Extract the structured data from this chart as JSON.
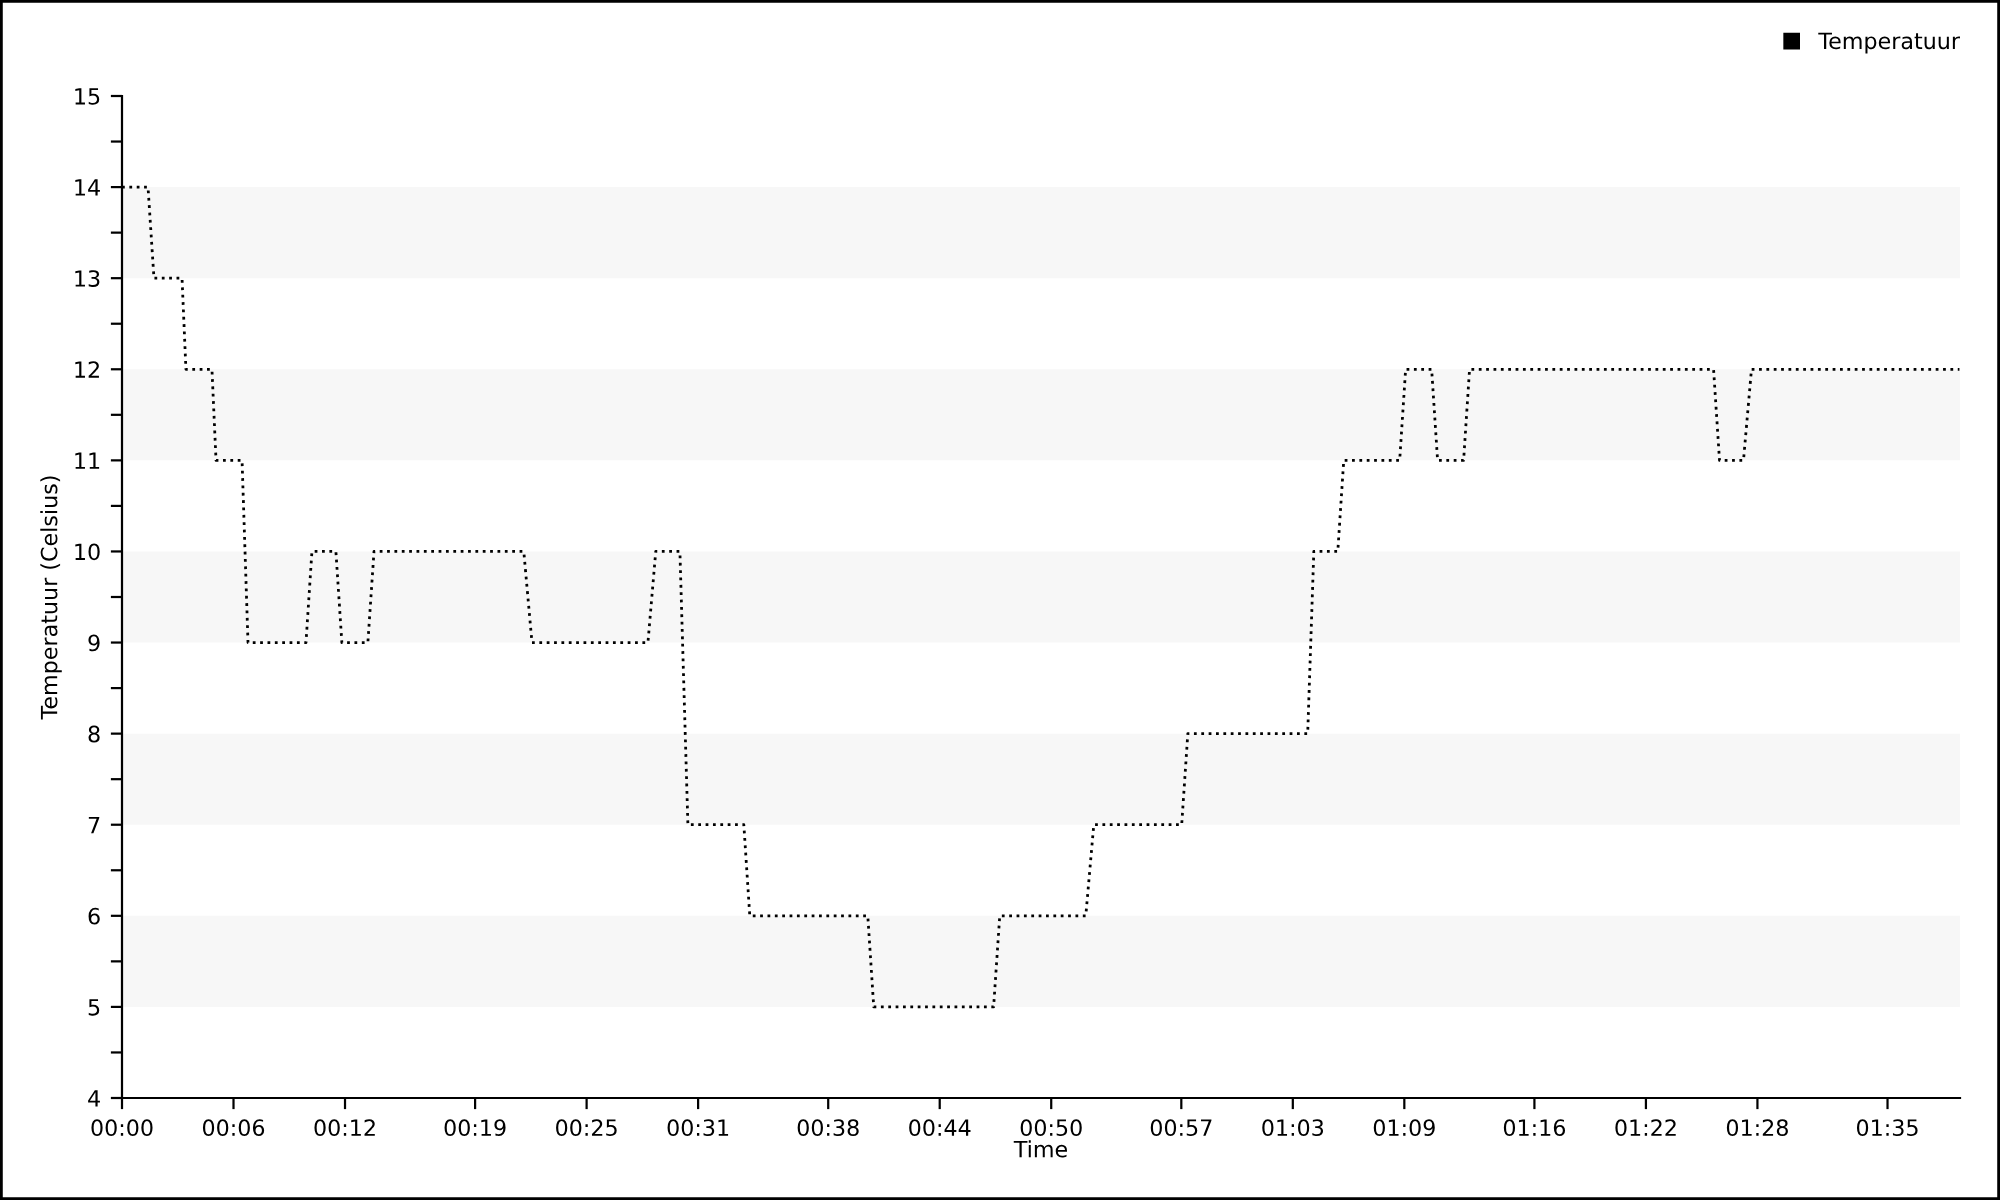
{
  "chart_data": {
    "type": "line",
    "xlabel": "Time",
    "ylabel": "Temperatuur (Celsius)",
    "x": [
      0,
      1.4,
      1.72,
      3.23,
      3.44,
      4.84,
      5.06,
      6.46,
      6.78,
      9.9,
      10.22,
      11.51,
      11.83,
      13.23,
      13.56,
      21.62,
      22.06,
      28.3,
      28.72,
      30.02,
      30.45,
      33.46,
      33.78,
      40.13,
      40.45,
      46.9,
      47.23,
      51.86,
      52.29,
      57.02,
      57.35,
      63.8,
      64.13,
      65.42,
      65.74,
      68.75,
      69.07,
      70.47,
      70.79,
      72.19,
      72.51,
      85.64,
      85.96,
      87.25,
      87.68,
      98.87
    ],
    "series": [
      {
        "name": "Temperatuur",
        "color": "#000000",
        "values": [
          14,
          14,
          13,
          13,
          12,
          12,
          11,
          11,
          9,
          9,
          10,
          10,
          9,
          9,
          10,
          10,
          9,
          9,
          10,
          10,
          7,
          7,
          6,
          6,
          5,
          5,
          6,
          6,
          7,
          7,
          8,
          8,
          10,
          10,
          11,
          11,
          12,
          12,
          11,
          11,
          12,
          12,
          11,
          11,
          12,
          12
        ]
      }
    ],
    "xlim": [
      0,
      98.9
    ],
    "xticks": [
      {
        "value": 0,
        "label": "00:00"
      },
      {
        "value": 6,
        "label": "00:06"
      },
      {
        "value": 12,
        "label": "00:12"
      },
      {
        "value": 19,
        "label": "00:19"
      },
      {
        "value": 25,
        "label": "00:25"
      },
      {
        "value": 31,
        "label": "00:31"
      },
      {
        "value": 38,
        "label": "00:38"
      },
      {
        "value": 44,
        "label": "00:44"
      },
      {
        "value": 50,
        "label": "00:50"
      },
      {
        "value": 57,
        "label": "00:57"
      },
      {
        "value": 63,
        "label": "01:03"
      },
      {
        "value": 69,
        "label": "01:09"
      },
      {
        "value": 76,
        "label": "01:16"
      },
      {
        "value": 82,
        "label": "01:22"
      },
      {
        "value": 88,
        "label": "01:28"
      },
      {
        "value": 95,
        "label": "01:35"
      }
    ],
    "ylim": [
      4,
      15
    ],
    "yticks": [
      4,
      {
        "value": 4.5,
        "label": null
      },
      5,
      {
        "value": 5.5,
        "label": null
      },
      6,
      {
        "value": 6.5,
        "label": null
      },
      7,
      {
        "value": 7.5,
        "label": null
      },
      8,
      {
        "value": 8.5,
        "label": null
      },
      9,
      {
        "value": 9.5,
        "label": null
      },
      10,
      {
        "value": 10.5,
        "label": null
      },
      11,
      {
        "value": 11.5,
        "label": null
      },
      12,
      {
        "value": 12.5,
        "label": null
      },
      13,
      {
        "value": 13.5,
        "label": null
      },
      14,
      {
        "value": 14.5,
        "label": null
      },
      15
    ],
    "bands": [
      {
        "axis": "y",
        "from": 5,
        "to": 6,
        "color": "#f7f7f7"
      },
      {
        "axis": "y",
        "from": 7,
        "to": 8,
        "color": "#f7f7f7"
      },
      {
        "axis": "y",
        "from": 9,
        "to": 10,
        "color": "#f7f7f7"
      },
      {
        "axis": "y",
        "from": 11,
        "to": 12,
        "color": "#f7f7f7"
      },
      {
        "axis": "y",
        "from": 13,
        "to": 14,
        "color": "#f7f7f7"
      }
    ],
    "legend": "top right",
    "line_style": "dotted",
    "marker": "none"
  }
}
